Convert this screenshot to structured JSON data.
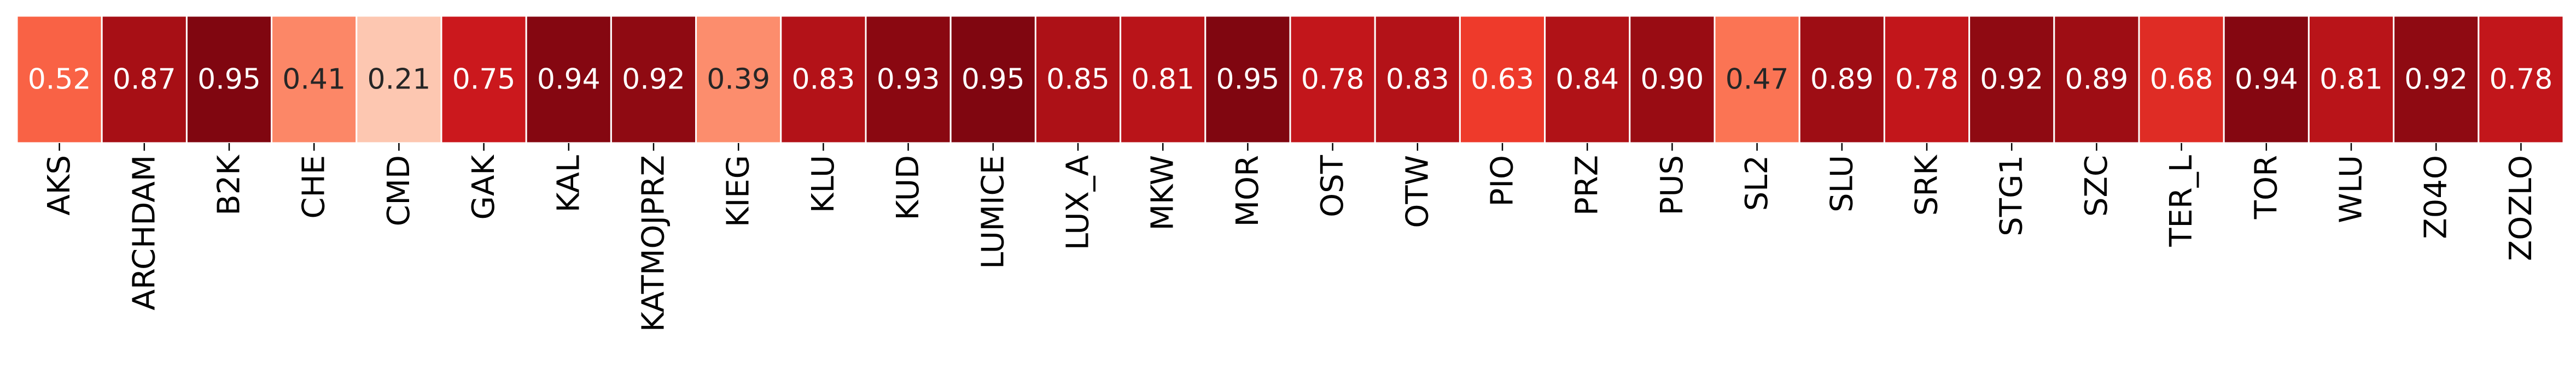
{
  "chart_data": {
    "type": "heatmap",
    "title": "",
    "xlabel": "",
    "ylabel": "",
    "colormap": "Reds",
    "vmin": 0.0,
    "vmax": 1.0,
    "colorbar": false,
    "grid": false,
    "categories": [
      "AKS",
      "ARCHDAM",
      "B2K",
      "CHE",
      "CMD",
      "GAK",
      "KAL",
      "KATMOJPRZ",
      "KIEG",
      "KLU",
      "KUD",
      "LUMICE",
      "LUX_A",
      "MKW",
      "MOR",
      "OST",
      "OTW",
      "PIO",
      "PRZ",
      "PUS",
      "SL2",
      "SLU",
      "SRK",
      "STG1",
      "SZC",
      "TER_L",
      "TOR",
      "WLU",
      "Z04O",
      "ZOZLO"
    ],
    "values": [
      0.52,
      0.87,
      0.95,
      0.41,
      0.21,
      0.75,
      0.94,
      0.92,
      0.39,
      0.83,
      0.93,
      0.95,
      0.85,
      0.81,
      0.95,
      0.78,
      0.83,
      0.63,
      0.84,
      0.9,
      0.47,
      0.89,
      0.78,
      0.92,
      0.89,
      0.68,
      0.94,
      0.81,
      0.92,
      0.78
    ],
    "value_labels": [
      "0.52",
      "0.87",
      "0.95",
      "0.41",
      "0.21",
      "0.75",
      "0.94",
      "0.92",
      "0.39",
      "0.83",
      "0.93",
      "0.95",
      "0.85",
      "0.81",
      "0.95",
      "0.78",
      "0.83",
      "0.63",
      "0.84",
      "0.90",
      "0.47",
      "0.89",
      "0.78",
      "0.92",
      "0.89",
      "0.68",
      "0.94",
      "0.81",
      "0.92",
      "0.78"
    ]
  }
}
